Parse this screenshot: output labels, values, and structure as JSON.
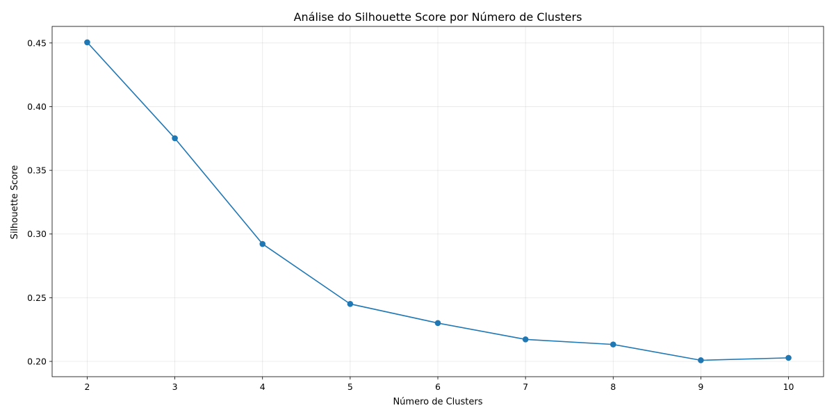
{
  "chart_data": {
    "type": "line",
    "title": "Análise do Silhouette Score por Número de Clusters",
    "xlabel": "Número de Clusters",
    "ylabel": "Silhouette Score",
    "x": [
      2,
      3,
      4,
      5,
      6,
      7,
      8,
      9,
      10
    ],
    "series": [
      {
        "values": [
          0.4505,
          0.3752,
          0.2922,
          0.2451,
          0.2301,
          0.2173,
          0.2133,
          0.2009,
          0.2028
        ]
      }
    ],
    "xlim": [
      1.6,
      10.4
    ],
    "ylim": [
      0.188,
      0.463
    ],
    "xticks": [
      2,
      3,
      4,
      5,
      6,
      7,
      8,
      9,
      10
    ],
    "xtick_labels": [
      "2",
      "3",
      "4",
      "5",
      "6",
      "7",
      "8",
      "9",
      "10"
    ],
    "yticks": [
      0.2,
      0.25,
      0.3,
      0.35,
      0.4,
      0.45
    ],
    "ytick_labels": [
      "0.20",
      "0.25",
      "0.30",
      "0.35",
      "0.40",
      "0.45"
    ],
    "grid": true,
    "marker": "circle",
    "color": "#1f77b4"
  }
}
